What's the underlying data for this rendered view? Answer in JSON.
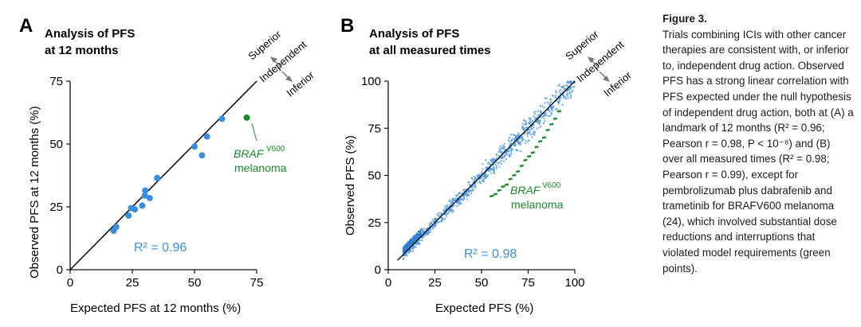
{
  "panel_labels": {
    "a": "A",
    "b": "B"
  },
  "direction_labels": {
    "superior": "Superior",
    "independent": "Independent",
    "inferior": "Inferior"
  },
  "colors": {
    "blue": "#3a8ee0",
    "green": "#1a8a2a",
    "axis": "#111111"
  },
  "chart_data": [
    {
      "type": "scatter",
      "title": "Analysis of PFS",
      "subtitle": "at 12 months",
      "xlabel": "Expected PFS at 12 months (%)",
      "ylabel": "Observed PFS at 12 months (%)",
      "xlim": [
        0,
        75
      ],
      "ylim": [
        0,
        75
      ],
      "xticks": [
        "0",
        "25",
        "50",
        "75"
      ],
      "yticks": [
        "0",
        "25",
        "50",
        "75"
      ],
      "r2_label": "R² = 0.96",
      "annotation_top": "BRAF",
      "annotation_sup": "V600",
      "annotation_bottom": "melanoma",
      "series": [
        {
          "color": "blue",
          "x": [
            17.5,
            18.5,
            23.5,
            24.5,
            26,
            29,
            30,
            30.2,
            32,
            35,
            50,
            53,
            55,
            61
          ],
          "y": [
            15.5,
            17,
            21.5,
            24.5,
            24,
            25.5,
            29.5,
            31.5,
            28.5,
            36.5,
            49,
            45.5,
            53,
            60
          ]
        },
        {
          "color": "green",
          "x": [
            71
          ],
          "y": [
            60.5
          ]
        }
      ]
    },
    {
      "type": "scatter",
      "title": "Analysis of PFS",
      "subtitle": "at all measured times",
      "xlabel": "Expected PFS (%)",
      "ylabel": "Observed PFS (%)",
      "xlim": [
        0,
        100
      ],
      "ylim": [
        0,
        100
      ],
      "xticks": [
        "0",
        "25",
        "50",
        "75",
        "100"
      ],
      "yticks": [
        "0",
        "25",
        "50",
        "75",
        "100"
      ],
      "r2_label": "R² = 0.98",
      "annotation_top": "BRAF",
      "annotation_sup": "V600",
      "annotation_bottom": "melanoma",
      "series": [
        {
          "color": "blue",
          "description": "dense cloud of points from ~(8,8) to (100,100) along identity line, mostly slightly below it"
        },
        {
          "color": "green",
          "x": [
            55,
            57,
            59,
            61,
            63,
            65,
            67,
            69,
            71,
            73,
            75,
            77,
            79,
            81,
            83,
            85,
            87,
            89,
            91
          ],
          "y": [
            39,
            40,
            42,
            44,
            45,
            48,
            50,
            52,
            55,
            58,
            60,
            62,
            65,
            68,
            70,
            74,
            77,
            80,
            84
          ]
        }
      ]
    }
  ],
  "caption": {
    "title": "Figure 3.",
    "body": "Trials combining ICIs with other cancer therapies are consistent with, or inferior to, independent drug action. Observed PFS has a strong linear correlation with PFS expected under the null hypothesis of independent drug action, both at (A) a landmark of 12 months (R² = 0.96; Pearson r = 0.98, P < 10⁻⁸) and (B) over all measured times (R² = 0.98; Pearson r = 0.99), except for pembrolizumab plus dabrafenib and trametinib for BRAFV600 melanoma (24), which involved substantial dose reductions and interruptions that violated model requirements (green points)."
  }
}
